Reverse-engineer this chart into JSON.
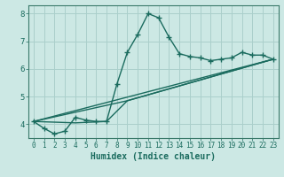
{
  "xlabel": "Humidex (Indice chaleur)",
  "ylabel": "",
  "xlim": [
    -0.5,
    23.5
  ],
  "ylim": [
    3.5,
    8.3
  ],
  "yticks": [
    4,
    5,
    6,
    7,
    8
  ],
  "xticks": [
    0,
    1,
    2,
    3,
    4,
    5,
    6,
    7,
    8,
    9,
    10,
    11,
    12,
    13,
    14,
    15,
    16,
    17,
    18,
    19,
    20,
    21,
    22,
    23
  ],
  "bg_color": "#cce8e4",
  "grid_color": "#aacfcb",
  "line_color": "#1a6b5e",
  "line1_x": [
    0,
    1,
    2,
    3,
    4,
    5,
    6,
    7,
    8,
    9,
    10,
    11,
    12,
    13,
    14,
    15,
    16,
    17,
    18,
    19,
    20,
    21,
    22,
    23
  ],
  "line1_y": [
    4.1,
    3.85,
    3.65,
    3.75,
    4.25,
    4.15,
    4.1,
    4.1,
    5.45,
    6.6,
    7.25,
    8.0,
    7.85,
    7.15,
    6.55,
    6.45,
    6.4,
    6.3,
    6.35,
    6.4,
    6.6,
    6.5,
    6.5,
    6.35
  ],
  "line2_x": [
    0,
    23
  ],
  "line2_y": [
    4.1,
    6.35
  ],
  "line3_x": [
    0,
    9,
    23
  ],
  "line3_y": [
    4.1,
    4.85,
    6.35
  ],
  "line4_x": [
    0,
    4,
    7,
    9,
    23
  ],
  "line4_y": [
    4.1,
    4.05,
    4.1,
    4.85,
    6.35
  ]
}
